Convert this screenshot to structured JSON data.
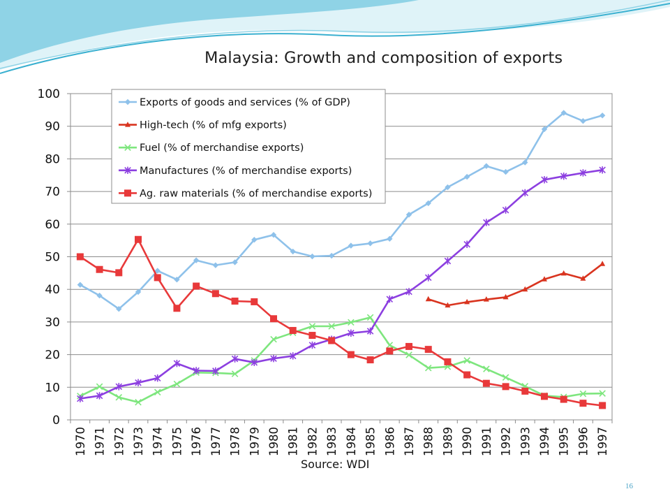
{
  "slide": {
    "title": "Malaysia: Growth and composition of exports",
    "source": "Source: WDI",
    "page_number": "16"
  },
  "colors": {
    "header_wave_light": "#dff3f8",
    "header_wave_mid": "#8fd3e6",
    "header_wave_dark": "#3ab0d0",
    "page_number": "#4aa3c7"
  },
  "chart_data": {
    "type": "line",
    "title": "",
    "xlabel": "",
    "ylabel": "",
    "ylim": [
      0,
      100
    ],
    "yticks": [
      0,
      10,
      20,
      30,
      40,
      50,
      60,
      70,
      80,
      90,
      100
    ],
    "grid": true,
    "legend_position": "top-left",
    "categories": [
      "1970",
      "1971",
      "1972",
      "1973",
      "1974",
      "1975",
      "1976",
      "1977",
      "1978",
      "1979",
      "1980",
      "1981",
      "1982",
      "1983",
      "1984",
      "1985",
      "1986",
      "1987",
      "1988",
      "1989",
      "1990",
      "1991",
      "1992",
      "1993",
      "1994",
      "1995",
      "1996",
      "1997"
    ],
    "series": [
      {
        "name": "Exports of goods and services (% of GDP)",
        "color": "#8ec1ea",
        "marker": "diamond",
        "values": [
          41.4,
          38.1,
          34.0,
          39.2,
          45.7,
          43.0,
          48.9,
          47.4,
          48.3,
          55.2,
          56.7,
          51.6,
          50.1,
          50.3,
          53.4,
          54.1,
          55.5,
          62.9,
          66.4,
          71.3,
          74.5,
          77.8,
          76.0,
          78.9,
          89.1,
          94.1,
          91.6,
          93.3
        ]
      },
      {
        "name": "High-tech (% of mfg exports)",
        "color": "#d9341f",
        "marker": "triangle",
        "values": [
          null,
          null,
          null,
          null,
          null,
          null,
          null,
          null,
          null,
          null,
          null,
          null,
          null,
          null,
          null,
          null,
          null,
          null,
          37.0,
          35.1,
          36.1,
          36.9,
          37.6,
          40.0,
          43.1,
          44.9,
          43.3,
          47.8
        ]
      },
      {
        "name": "Fuel (% of merchandise exports)",
        "color": "#7ee67e",
        "marker": "x",
        "values": [
          7.3,
          10.2,
          6.9,
          5.4,
          8.5,
          11.0,
          14.5,
          14.4,
          14.1,
          18.2,
          24.7,
          26.7,
          28.7,
          28.7,
          29.9,
          31.4,
          22.9,
          19.9,
          15.9,
          16.3,
          18.2,
          15.6,
          13.0,
          10.3,
          7.4,
          7.0,
          8.0,
          8.1
        ]
      },
      {
        "name": "Manufactures (% of merchandise exports)",
        "color": "#8c3fe0",
        "marker": "star",
        "values": [
          6.5,
          7.4,
          10.2,
          11.4,
          12.8,
          17.3,
          15.1,
          15.0,
          18.7,
          17.6,
          18.8,
          19.6,
          22.9,
          24.7,
          26.6,
          27.2,
          37.0,
          39.3,
          43.6,
          48.7,
          53.8,
          60.5,
          64.3,
          69.6,
          73.6,
          74.7,
          75.7,
          76.6
        ]
      },
      {
        "name": "Ag. raw materials (% of merchandise exports)",
        "color": "#e8393a",
        "marker": "square",
        "values": [
          50.0,
          46.1,
          45.1,
          55.3,
          43.6,
          34.2,
          41.0,
          38.7,
          36.4,
          36.2,
          31.0,
          27.4,
          25.9,
          24.3,
          20.0,
          18.4,
          21.1,
          22.5,
          21.6,
          17.8,
          13.8,
          11.2,
          10.2,
          8.8,
          7.2,
          6.3,
          5.1,
          4.4
        ]
      }
    ]
  }
}
